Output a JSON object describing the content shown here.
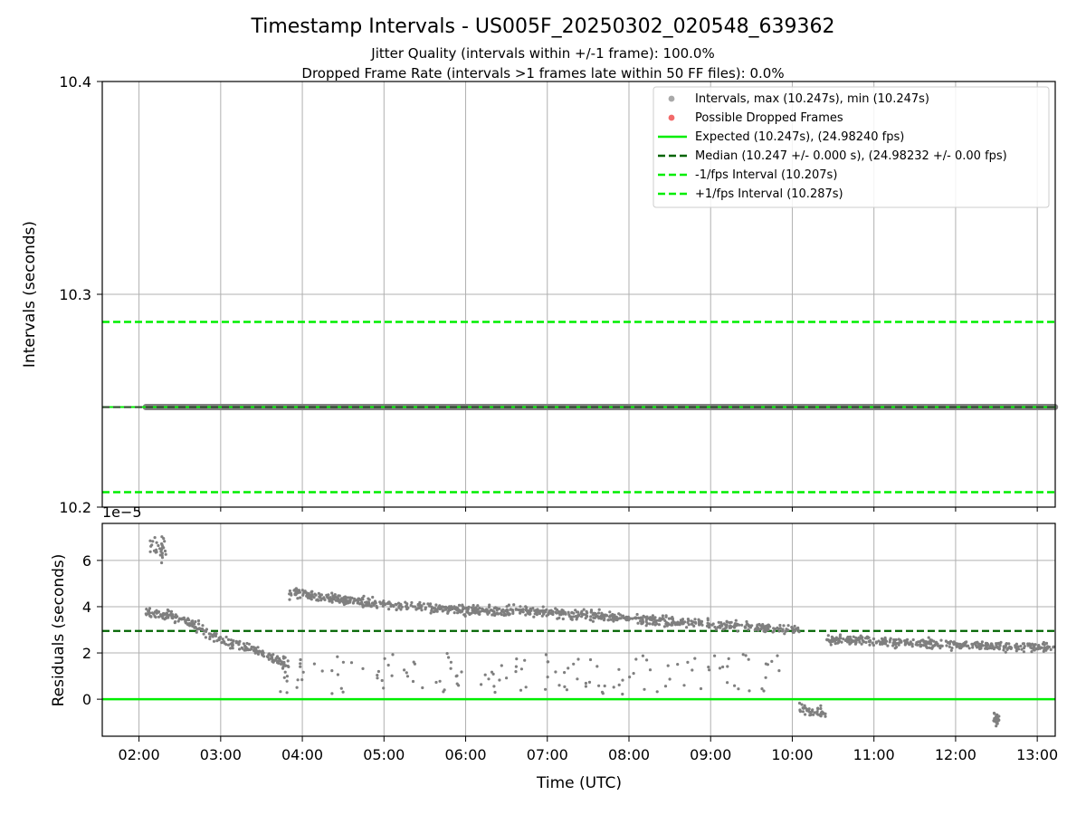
{
  "figure": {
    "title": "Timestamp Intervals - US005F_20250302_020548_639362",
    "subtitle_1": "Jitter Quality (intervals within +/-1 frame): 100.0%",
    "subtitle_2": "Dropped Frame Rate (intervals >1 frames late within 50 FF files): 0.0%"
  },
  "chart_data": [
    {
      "type": "scatter",
      "panel": "top",
      "ylabel": "Intervals (seconds)",
      "ylim": [
        10.2,
        10.4
      ],
      "y_ticks": [
        "10.2",
        "10.3",
        "10.4"
      ],
      "x_range_hours": [
        1.55,
        13.22
      ],
      "grid": true,
      "legend_position": "top-right",
      "legend": [
        {
          "label": "Intervals, max (10.247s), min (10.247s)",
          "kind": "marker",
          "color": "#a9a9a9"
        },
        {
          "label": "Possible Dropped Frames",
          "kind": "marker",
          "color": "#f26a6a"
        },
        {
          "label": "Expected (10.247s), (24.98240 fps)",
          "kind": "line",
          "color": "#00ee00"
        },
        {
          "label": "Median (10.247 +/- 0.000 s), (24.98232 +/- 0.00 fps)",
          "kind": "dashed",
          "color": "#006400"
        },
        {
          "label": "-1/fps Interval (10.207s)",
          "kind": "dashed",
          "color": "#00ee00"
        },
        {
          "label": "+1/fps Interval (10.287s)",
          "kind": "dashed",
          "color": "#00ee00"
        }
      ],
      "series": [
        {
          "kind": "points",
          "x_start": "02:05",
          "x_end": "13:13",
          "value": 10.247
        },
        {
          "kind": "hline",
          "value": 10.247
        },
        {
          "kind": "hline",
          "value": 10.247
        },
        {
          "kind": "hline",
          "value": 10.207
        },
        {
          "kind": "hline",
          "value": 10.287
        }
      ]
    },
    {
      "type": "scatter",
      "panel": "bottom",
      "ylabel": "Residuals (seconds)",
      "xlabel": "Time (UTC)",
      "scale_label": "1e−5",
      "ylim": [
        -1.6,
        7.6
      ],
      "y_ticks": [
        "0",
        "2",
        "4",
        "6"
      ],
      "x_ticks": [
        "02:00",
        "03:00",
        "04:00",
        "05:00",
        "06:00",
        "07:00",
        "08:00",
        "09:00",
        "10:00",
        "11:00",
        "12:00",
        "13:00"
      ],
      "x_range_hours": [
        1.55,
        13.22
      ],
      "grid": true,
      "expected_line": 0,
      "median_line": 2.95,
      "main_band": [
        {
          "t": "02:05",
          "y": 3.8
        },
        {
          "t": "02:30",
          "y": 3.5
        },
        {
          "t": "03:00",
          "y": 2.6
        },
        {
          "t": "03:30",
          "y": 2.0
        },
        {
          "t": "03:45",
          "y": 1.6
        },
        {
          "t": "03:50",
          "y": 4.6
        },
        {
          "t": "04:30",
          "y": 4.3
        },
        {
          "t": "05:00",
          "y": 4.1
        },
        {
          "t": "06:00",
          "y": 3.85
        },
        {
          "t": "07:00",
          "y": 3.75
        },
        {
          "t": "08:00",
          "y": 3.5
        },
        {
          "t": "09:00",
          "y": 3.25
        },
        {
          "t": "10:00",
          "y": 3.0
        },
        {
          "t": "10:05",
          "y": -0.4
        },
        {
          "t": "10:20",
          "y": -0.6
        },
        {
          "t": "10:25",
          "y": 2.6
        },
        {
          "t": "11:00",
          "y": 2.5
        },
        {
          "t": "12:00",
          "y": 2.35
        },
        {
          "t": "13:13",
          "y": 2.2
        }
      ],
      "clusters": [
        {
          "t_start": "02:08",
          "t_end": "02:20",
          "y_center": 6.6,
          "spread": 0.5
        },
        {
          "t_start": "12:28",
          "t_end": "12:32",
          "y_center": -0.85,
          "spread": 0.25
        }
      ]
    }
  ]
}
